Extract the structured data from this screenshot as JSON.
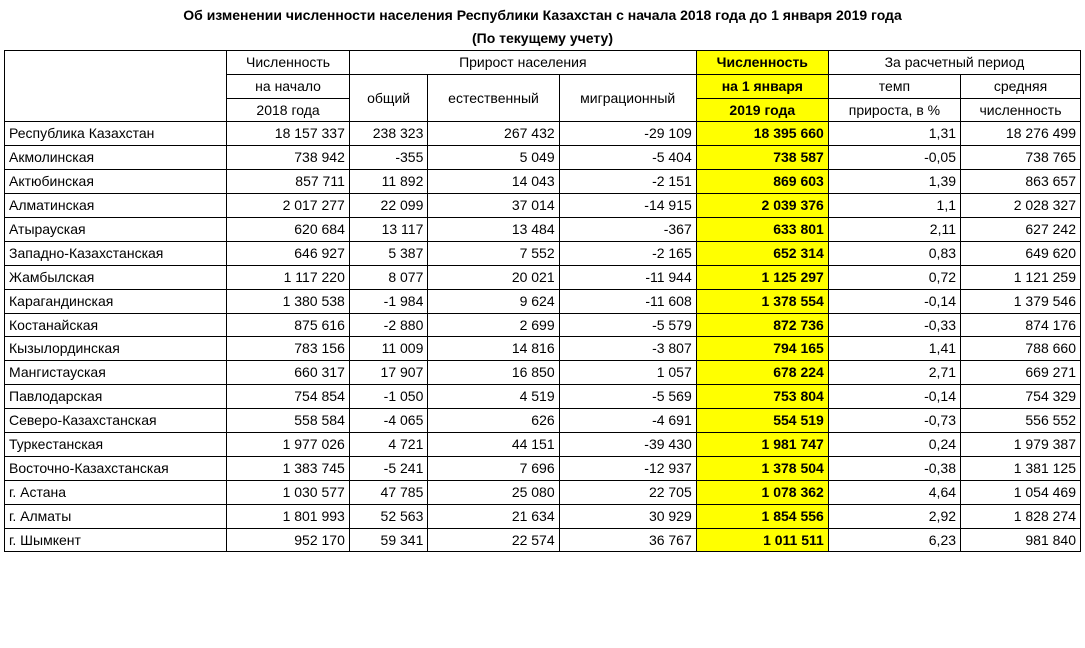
{
  "title_line1": "Об изменении численности населения Республики Казахстан с начала 2018 года до 1 января 2019 года",
  "title_line2": "(По текущему учету)",
  "headers": {
    "pop_start_l1": "Численность",
    "pop_start_l2": "на начало",
    "pop_start_l3": "2018 года",
    "growth_group": "Прирост населения",
    "growth_total": "общий",
    "growth_natural": "естественный",
    "growth_migration": "миграционный",
    "pop_end_l1": "Численность",
    "pop_end_l2": "на 1 января",
    "pop_end_l3": "2019 года",
    "calc_period": "За расчетный период",
    "rate_l1": "темп",
    "rate_l2": "прироста, в %",
    "avg_l1": "средняя",
    "avg_l2": "численность"
  },
  "rows": [
    {
      "region": "Республика Казахстан",
      "start": "18 157 337",
      "total": "238 323",
      "natural": "267 432",
      "migration": "-29 109",
      "end": "18 395 660",
      "rate": "1,31",
      "avg": "18 276 499"
    },
    {
      "region": "Акмолинская",
      "start": "738 942",
      "total": "-355",
      "natural": "5 049",
      "migration": "-5 404",
      "end": "738 587",
      "rate": "-0,05",
      "avg": "738 765"
    },
    {
      "region": "Актюбинская",
      "start": "857 711",
      "total": "11 892",
      "natural": "14 043",
      "migration": "-2 151",
      "end": "869 603",
      "rate": "1,39",
      "avg": "863 657"
    },
    {
      "region": "Алматинская",
      "start": "2 017 277",
      "total": "22 099",
      "natural": "37 014",
      "migration": "-14 915",
      "end": "2 039 376",
      "rate": "1,1",
      "avg": "2 028 327"
    },
    {
      "region": "Атырауская",
      "start": "620 684",
      "total": "13 117",
      "natural": "13 484",
      "migration": "-367",
      "end": "633 801",
      "rate": "2,11",
      "avg": "627 242"
    },
    {
      "region": "Западно-Казахстанская",
      "start": "646 927",
      "total": "5 387",
      "natural": "7 552",
      "migration": "-2 165",
      "end": "652 314",
      "rate": "0,83",
      "avg": "649 620"
    },
    {
      "region": "Жамбылская",
      "start": "1 117 220",
      "total": "8 077",
      "natural": "20 021",
      "migration": "-11 944",
      "end": "1 125 297",
      "rate": "0,72",
      "avg": "1 121 259"
    },
    {
      "region": "Карагандинская",
      "start": "1 380 538",
      "total": "-1 984",
      "natural": "9 624",
      "migration": "-11 608",
      "end": "1 378 554",
      "rate": "-0,14",
      "avg": "1 379 546"
    },
    {
      "region": "Костанайская",
      "start": "875 616",
      "total": "-2 880",
      "natural": "2 699",
      "migration": "-5 579",
      "end": "872 736",
      "rate": "-0,33",
      "avg": "874 176"
    },
    {
      "region": "Кызылординская",
      "start": "783 156",
      "total": "11 009",
      "natural": "14 816",
      "migration": "-3 807",
      "end": "794 165",
      "rate": "1,41",
      "avg": "788 660"
    },
    {
      "region": "Мангистауская",
      "start": "660 317",
      "total": "17 907",
      "natural": "16 850",
      "migration": "1 057",
      "end": "678 224",
      "rate": "2,71",
      "avg": "669 271"
    },
    {
      "region": "Павлодарская",
      "start": "754 854",
      "total": "-1 050",
      "natural": "4 519",
      "migration": "-5 569",
      "end": "753 804",
      "rate": "-0,14",
      "avg": "754 329"
    },
    {
      "region": "Северо-Казахстанская",
      "start": "558 584",
      "total": "-4 065",
      "natural": "626",
      "migration": "-4 691",
      "end": "554 519",
      "rate": "-0,73",
      "avg": "556 552"
    },
    {
      "region": "Туркестанская",
      "start": "1 977 026",
      "total": "4 721",
      "natural": "44 151",
      "migration": "-39 430",
      "end": "1 981 747",
      "rate": "0,24",
      "avg": "1 979 387"
    },
    {
      "region": "Восточно-Казахстанская",
      "start": "1 383 745",
      "total": "-5 241",
      "natural": "7 696",
      "migration": "-12 937",
      "end": "1 378 504",
      "rate": "-0,38",
      "avg": "1 381 125"
    },
    {
      "region": "г. Астана",
      "start": "1 030 577",
      "total": "47 785",
      "natural": "25 080",
      "migration": "22 705",
      "end": "1 078 362",
      "rate": "4,64",
      "avg": "1 054 469"
    },
    {
      "region": "г. Алматы",
      "start": "1 801 993",
      "total": "52 563",
      "natural": "21 634",
      "migration": "30 929",
      "end": "1 854 556",
      "rate": "2,92",
      "avg": "1 828 274"
    },
    {
      "region": "г. Шымкент",
      "start": "952 170",
      "total": "59 341",
      "natural": "22 574",
      "migration": "36 767",
      "end": "1 011 511",
      "rate": "6,23",
      "avg": "981 840"
    }
  ],
  "style": {
    "highlight_bg": "#ffff00",
    "border": "#000000",
    "bg": "#ffffff",
    "font_size_pt": 14
  }
}
